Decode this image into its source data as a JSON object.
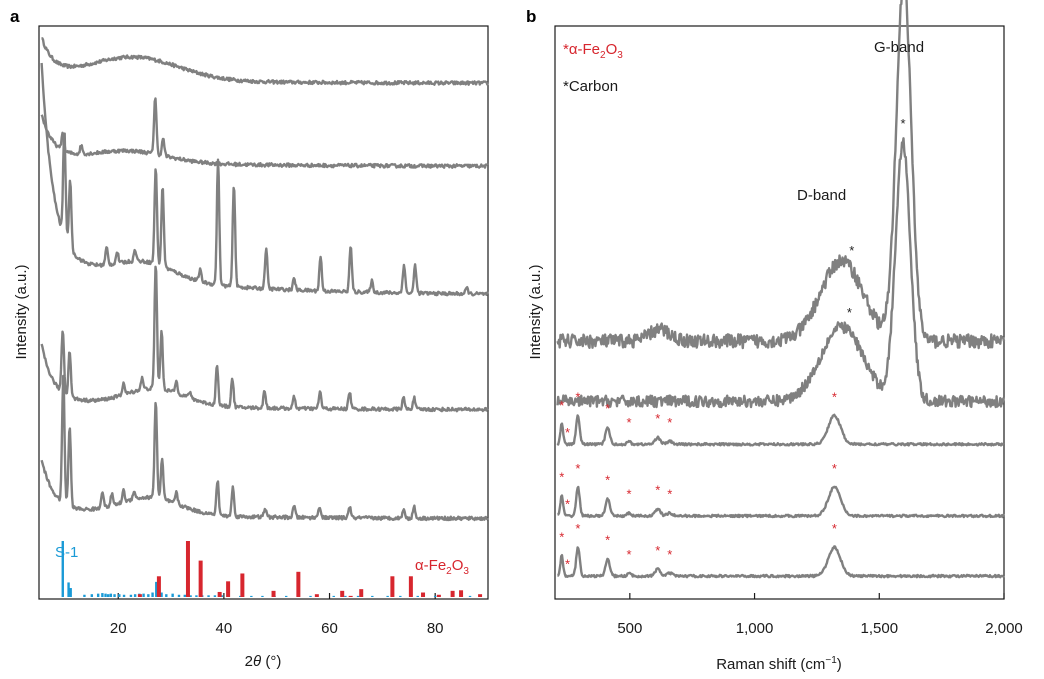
{
  "colors": {
    "trace": "#808080",
    "s1": "#1a9ad6",
    "fe2o3": "#d7262e",
    "star_black": "#222222",
    "star_red": "#d7262e"
  },
  "chart_data": [
    {
      "panel": "a",
      "type": "line",
      "xlabel_prefix": "2",
      "xlabel_italic": "θ",
      "xlabel_suffix": " (°)",
      "ylabel": "Intensity (a.u.)",
      "xlim": [
        5,
        90
      ],
      "xticks": [
        20,
        40,
        60,
        80
      ],
      "ticks_y": false,
      "traces": [
        {
          "baseline": 0.91,
          "start": 0.98,
          "end": 0.9,
          "hump": [
            23,
            0.04,
            12
          ],
          "peaks": []
        },
        {
          "baseline": 0.755,
          "start": 0.85,
          "end": 0.755,
          "hump": [
            22,
            0.02,
            10
          ],
          "peaks": [
            [
              9.5,
              0.03
            ],
            [
              27,
              0.1
            ],
            [
              28.5,
              0.03
            ],
            [
              13,
              0.015
            ]
          ]
        },
        {
          "baseline": 0.53,
          "start": 0.96,
          "end": 0.53,
          "hump": [
            25,
            0.03,
            8
          ],
          "peaks": [
            [
              9.8,
              0.19
            ],
            [
              10.9,
              0.12
            ],
            [
              17.8,
              0.03
            ],
            [
              19.8,
              0.02
            ],
            [
              23.2,
              0.02
            ],
            [
              27.1,
              0.17
            ],
            [
              28.4,
              0.14
            ],
            [
              35.5,
              0.02
            ],
            [
              38.9,
              0.22
            ],
            [
              41.9,
              0.18
            ],
            [
              48,
              0.07
            ],
            [
              53.3,
              0.02
            ],
            [
              58.3,
              0.06
            ],
            [
              64,
              0.08
            ],
            [
              68,
              0.02
            ],
            [
              74.1,
              0.05
            ],
            [
              76.2,
              0.05
            ],
            [
              86,
              0.01
            ]
          ]
        },
        {
          "baseline": 0.33,
          "start": 0.45,
          "end": 0.33,
          "hump": [
            27,
            0.03,
            8
          ],
          "peaks": [
            [
              9.5,
              0.11
            ],
            [
              10.8,
              0.08
            ],
            [
              21,
              0.02
            ],
            [
              24.5,
              0.02
            ],
            [
              27.1,
              0.22
            ],
            [
              28.2,
              0.1
            ],
            [
              31,
              0.02
            ],
            [
              33.5,
              0.01
            ],
            [
              38.7,
              0.07
            ],
            [
              41.6,
              0.05
            ],
            [
              47.7,
              0.03
            ],
            [
              53.3,
              0.02
            ],
            [
              58.2,
              0.03
            ],
            [
              63.8,
              0.03
            ],
            [
              74,
              0.02
            ],
            [
              76,
              0.02
            ]
          ]
        },
        {
          "baseline": 0.14,
          "start": 0.25,
          "end": 0.14,
          "hump": [
            26,
            0.03,
            8
          ],
          "peaks": [
            [
              9.6,
              0.22
            ],
            [
              10.8,
              0.14
            ],
            [
              17,
              0.03
            ],
            [
              18.8,
              0.02
            ],
            [
              21,
              0.02
            ],
            [
              23,
              0.015
            ],
            [
              27.1,
              0.17
            ],
            [
              28.3,
              0.07
            ],
            [
              31,
              0.02
            ],
            [
              38.8,
              0.06
            ],
            [
              41.7,
              0.05
            ],
            [
              47.8,
              0.015
            ],
            [
              53.3,
              0.02
            ],
            [
              58.1,
              0.02
            ],
            [
              63.8,
              0.02
            ],
            [
              74,
              0.015
            ],
            [
              76,
              0.02
            ]
          ]
        }
      ],
      "reference_bars": {
        "S-1": {
          "label": "S-1",
          "x": [
            9.5,
            10.6,
            11,
            13.6,
            15,
            16.2,
            17,
            17.6,
            18.1,
            18.6,
            19.3,
            20.2,
            21.1,
            22.4,
            23.2,
            24,
            24.8,
            25.7,
            26.5,
            27.2,
            28.2,
            29.1,
            30.3,
            31.5,
            32.6,
            33.7,
            34.8,
            35.9,
            37.1,
            38.3,
            39.6,
            40.8,
            43.1,
            45.2,
            47.3,
            49.6,
            51.8,
            54,
            56.4,
            60.8,
            63,
            65.4,
            68.1,
            71,
            73.4,
            76.7,
            80,
            83.3,
            86.6
          ],
          "h": [
            1.0,
            0.26,
            0.16,
            0.04,
            0.05,
            0.06,
            0.07,
            0.06,
            0.05,
            0.06,
            0.05,
            0.05,
            0.04,
            0.04,
            0.05,
            0.06,
            0.06,
            0.05,
            0.08,
            0.27,
            0.08,
            0.05,
            0.06,
            0.04,
            0.04,
            0.03,
            0.03,
            0.03,
            0.03,
            0.03,
            0.03,
            0.03,
            0.02,
            0.02,
            0.02,
            0.02,
            0.02,
            0.02,
            0.02,
            0.02,
            0.02,
            0.02,
            0.02,
            0.02,
            0.02,
            0.02,
            0.02,
            0.02,
            0.02
          ]
        },
        "Fe2O3": {
          "label_main": "α-Fe",
          "label_sub1": "2",
          "label_mid": "O",
          "label_sub2": "3",
          "x": [
            24.1,
            27.7,
            33.2,
            35.6,
            39.2,
            40.8,
            43.5,
            49.4,
            54.1,
            57.6,
            62.4,
            64,
            66,
            71.9,
            75.4,
            77.7,
            80.7,
            83.3,
            84.9,
            88.5
          ],
          "h": [
            0.05,
            0.37,
            1.0,
            0.65,
            0.09,
            0.28,
            0.42,
            0.11,
            0.45,
            0.05,
            0.11,
            0.02,
            0.14,
            0.37,
            0.37,
            0.08,
            0.04,
            0.11,
            0.12,
            0.05
          ]
        }
      }
    },
    {
      "panel": "b",
      "type": "line",
      "xlabel_main": "Raman shift (cm",
      "xlabel_sup": "−1",
      "xlabel_end": ")",
      "ylabel": "Intensity (a.u.)",
      "xlim": [
        200,
        2000
      ],
      "xticks": [
        500,
        1000,
        1500,
        2000
      ],
      "xtick_labels": [
        "500",
        "1,000",
        "1,500",
        "2,000"
      ],
      "traces": [
        {
          "baseline": 0.45,
          "noise": 0.012,
          "peaks": [
            [
              1350,
              0.14,
              120
            ],
            [
              1598,
              0.63,
              42
            ],
            [
              620,
              0.02,
              60
            ]
          ]
        },
        {
          "baseline": 0.345,
          "noise": 0.01,
          "peaks": [
            [
              1350,
              0.13,
              120
            ],
            [
              1595,
              0.45,
              42
            ]
          ]
        },
        {
          "baseline": 0.27,
          "noise": 0.002,
          "peaks": [
            [
              227,
              0.035,
              8
            ],
            [
              292,
              0.05,
              10
            ],
            [
              411,
              0.03,
              12
            ],
            [
              497,
              0.005,
              10
            ],
            [
              612,
              0.012,
              15
            ],
            [
              660,
              0.005,
              15
            ],
            [
              1320,
              0.05,
              35
            ]
          ]
        },
        {
          "baseline": 0.145,
          "noise": 0.002,
          "peaks": [
            [
              227,
              0.035,
              8
            ],
            [
              292,
              0.05,
              10
            ],
            [
              411,
              0.03,
              12
            ],
            [
              497,
              0.005,
              10
            ],
            [
              612,
              0.012,
              15
            ],
            [
              660,
              0.005,
              15
            ],
            [
              1320,
              0.05,
              35
            ]
          ]
        },
        {
          "baseline": 0.04,
          "noise": 0.002,
          "peaks": [
            [
              227,
              0.035,
              8
            ],
            [
              292,
              0.05,
              10
            ],
            [
              411,
              0.03,
              12
            ],
            [
              497,
              0.005,
              10
            ],
            [
              612,
              0.012,
              15
            ],
            [
              660,
              0.005,
              15
            ],
            [
              1320,
              0.05,
              35
            ]
          ]
        }
      ],
      "legend": {
        "fe2o3_prefix": "*α-Fe",
        "fe2o3_sub1": "2",
        "fe2o3_mid": "O",
        "fe2o3_sub2": "3",
        "carbon": "*Carbon"
      },
      "annotations": {
        "d_band": "D-band",
        "g_band": "G-band",
        "star": "*"
      },
      "red_star_x": [
        227,
        250,
        292,
        411,
        497,
        612,
        660,
        1320
      ],
      "black_star_x": [
        1390,
        1598,
        1380,
        1595
      ]
    }
  ],
  "labels": {
    "panel_a": "a",
    "panel_b": "b"
  }
}
